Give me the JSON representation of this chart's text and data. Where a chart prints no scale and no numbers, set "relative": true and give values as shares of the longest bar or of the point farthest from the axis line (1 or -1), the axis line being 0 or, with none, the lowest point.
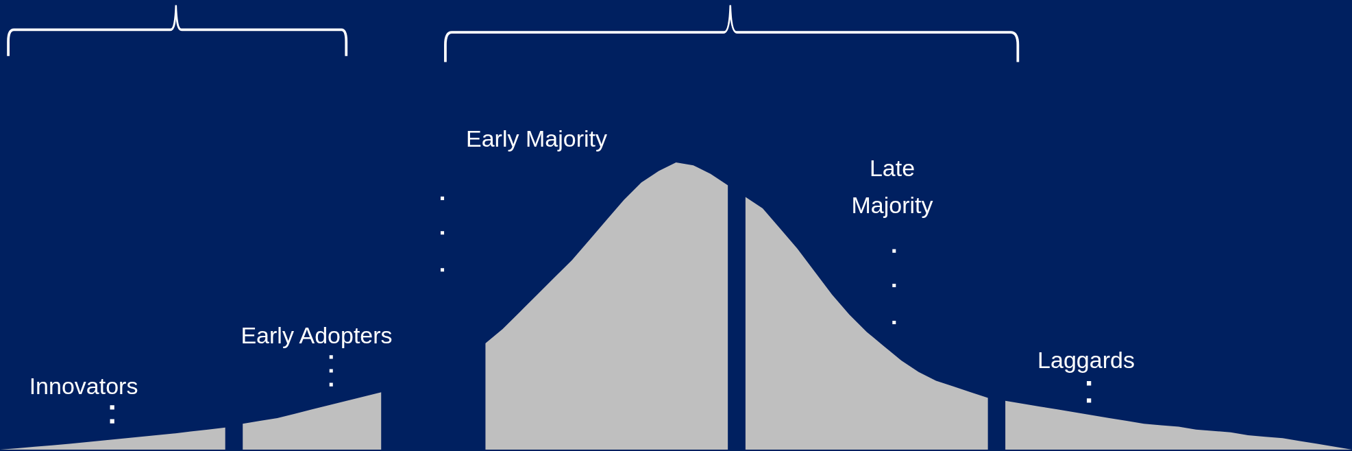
{
  "chart_data": {
    "type": "area",
    "relative": true,
    "legend": false,
    "tick_labels": false,
    "categories": [
      null,
      null,
      null,
      null,
      null,
      null,
      null,
      null,
      null,
      null,
      null,
      null,
      null,
      null,
      null,
      null,
      null,
      null,
      null,
      null,
      null,
      null,
      null,
      null,
      null,
      null,
      null,
      null,
      null,
      null,
      null,
      null,
      null,
      null,
      null,
      null,
      null,
      null,
      null,
      null,
      null,
      null,
      null,
      null,
      null,
      null,
      null,
      null,
      null,
      null,
      null,
      null,
      null,
      null,
      null,
      null,
      null,
      null,
      null,
      null,
      null,
      null,
      null,
      null,
      null,
      null,
      null,
      null,
      null,
      null,
      null,
      null,
      null,
      null,
      null,
      null,
      null,
      null,
      null
    ],
    "series": [
      {
        "name": "Innovators",
        "color": "#bfbfbf",
        "values": [
          0,
          0.005,
          0.01,
          0.015,
          0.02,
          0.026,
          0.032,
          0.038,
          0.044,
          0.05,
          0.056,
          0.063,
          0.07,
          0.077,
          null,
          null,
          null,
          null,
          null,
          null,
          null,
          null,
          null,
          null,
          null,
          null,
          null,
          null,
          null,
          null,
          null,
          null,
          null,
          null,
          null,
          null,
          null,
          null,
          null,
          null,
          null,
          null,
          null,
          null,
          null,
          null,
          null,
          null,
          null,
          null,
          null,
          null,
          null,
          null,
          null,
          null,
          null,
          null,
          null,
          null,
          null,
          null,
          null,
          null,
          null,
          null,
          null,
          null,
          null,
          null,
          null,
          null,
          null,
          null,
          null,
          null,
          null,
          null,
          null
        ]
      },
      {
        "name": "Early Adopters",
        "color": "#bfbfbf",
        "values": [
          null,
          null,
          null,
          null,
          null,
          null,
          null,
          null,
          null,
          null,
          null,
          null,
          null,
          null,
          0.09,
          0.1,
          0.11,
          0.125,
          0.14,
          0.155,
          0.17,
          0.185,
          0.2,
          null,
          null,
          null,
          null,
          null,
          null,
          null,
          null,
          null,
          null,
          null,
          null,
          null,
          null,
          null,
          null,
          null,
          null,
          null,
          null,
          null,
          null,
          null,
          null,
          null,
          null,
          null,
          null,
          null,
          null,
          null,
          null,
          null,
          null,
          null,
          null,
          null,
          null,
          null,
          null,
          null,
          null,
          null,
          null,
          null,
          null,
          null,
          null,
          null,
          null,
          null,
          null,
          null,
          null,
          null,
          null
        ]
      },
      {
        "name": "Early Majority",
        "color": "#bfbfbf",
        "values": [
          null,
          null,
          null,
          null,
          null,
          null,
          null,
          null,
          null,
          null,
          null,
          null,
          null,
          null,
          null,
          null,
          null,
          null,
          null,
          null,
          null,
          null,
          null,
          null,
          null,
          null,
          null,
          null,
          0.37,
          0.42,
          0.48,
          0.54,
          0.6,
          0.66,
          0.73,
          0.8,
          0.87,
          0.93,
          0.97,
          1,
          0.99,
          0.96,
          0.92,
          null,
          null,
          null,
          null,
          null,
          null,
          null,
          null,
          null,
          null,
          null,
          null,
          null,
          null,
          null,
          null,
          null,
          null,
          null,
          null,
          null,
          null,
          null,
          null,
          null,
          null,
          null,
          null,
          null,
          null,
          null,
          null,
          null,
          null,
          null,
          null
        ]
      },
      {
        "name": "Late Majority",
        "color": "#bfbfbf",
        "values": [
          null,
          null,
          null,
          null,
          null,
          null,
          null,
          null,
          null,
          null,
          null,
          null,
          null,
          null,
          null,
          null,
          null,
          null,
          null,
          null,
          null,
          null,
          null,
          null,
          null,
          null,
          null,
          null,
          null,
          null,
          null,
          null,
          null,
          null,
          null,
          null,
          null,
          null,
          null,
          null,
          null,
          null,
          null,
          0.88,
          0.84,
          0.77,
          0.7,
          0.62,
          0.54,
          0.47,
          0.41,
          0.36,
          0.31,
          0.27,
          0.24,
          0.22,
          0.2,
          0.18,
          null,
          null,
          null,
          null,
          null,
          null,
          null,
          null,
          null,
          null,
          null,
          null,
          null,
          null,
          null,
          null,
          null,
          null,
          null,
          null,
          null
        ]
      },
      {
        "name": "Laggards",
        "color": "#bfbfbf",
        "values": [
          null,
          null,
          null,
          null,
          null,
          null,
          null,
          null,
          null,
          null,
          null,
          null,
          null,
          null,
          null,
          null,
          null,
          null,
          null,
          null,
          null,
          null,
          null,
          null,
          null,
          null,
          null,
          null,
          null,
          null,
          null,
          null,
          null,
          null,
          null,
          null,
          null,
          null,
          null,
          null,
          null,
          null,
          null,
          null,
          null,
          null,
          null,
          null,
          null,
          null,
          null,
          null,
          null,
          null,
          null,
          null,
          null,
          null,
          0.17,
          0.16,
          0.15,
          0.14,
          0.13,
          0.12,
          0.11,
          0.1,
          0.09,
          0.085,
          0.08,
          0.07,
          0.065,
          0.06,
          0.05,
          0.045,
          0.04,
          0.03,
          0.02,
          0.01,
          0
        ]
      }
    ]
  }
}
